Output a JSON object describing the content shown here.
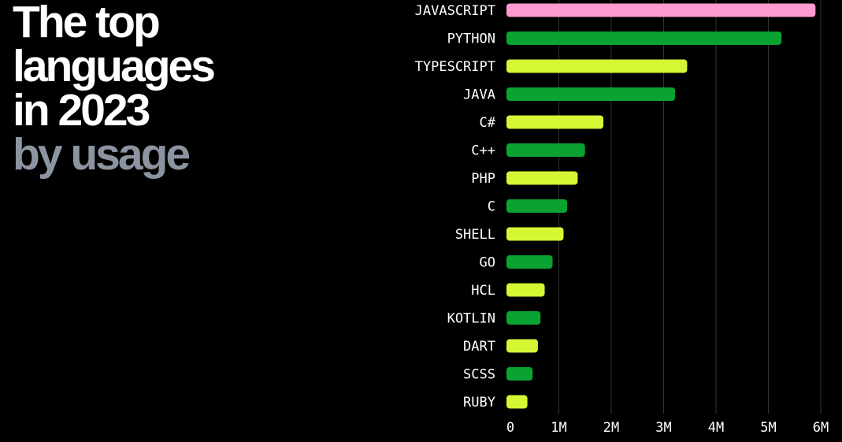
{
  "title": {
    "line1": "The top",
    "line2": "languages",
    "line3": "in 2023",
    "line4": "by usage"
  },
  "colors": {
    "background": "#000000",
    "highlight": "#ff9bd0",
    "green": "#0aa331",
    "lime": "#d4f834",
    "grid": "#333333",
    "subtitle": "#8b94a0"
  },
  "chart_data": {
    "type": "bar",
    "orientation": "horizontal",
    "title": "The top languages in 2023 by usage",
    "xlabel": "",
    "ylabel": "",
    "xlim": [
      0,
      6000000
    ],
    "grid": true,
    "categories": [
      "JAVASCRIPT",
      "PYTHON",
      "TYPESCRIPT",
      "JAVA",
      "C#",
      "C++",
      "PHP",
      "C",
      "SHELL",
      "GO",
      "HCL",
      "KOTLIN",
      "DART",
      "SCSS",
      "RUBY"
    ],
    "values": [
      5900000,
      5250000,
      3450000,
      3220000,
      1850000,
      1500000,
      1360000,
      1160000,
      1090000,
      880000,
      730000,
      650000,
      600000,
      500000,
      400000
    ],
    "bar_colors": [
      "highlight",
      "green",
      "lime",
      "green",
      "lime",
      "green",
      "lime",
      "green",
      "lime",
      "green",
      "lime",
      "green",
      "lime",
      "green",
      "lime"
    ],
    "ticks": [
      0,
      1000000,
      2000000,
      3000000,
      4000000,
      5000000,
      6000000
    ],
    "tick_labels": [
      "0",
      "1M",
      "2M",
      "3M",
      "4M",
      "5M",
      "6M"
    ]
  }
}
